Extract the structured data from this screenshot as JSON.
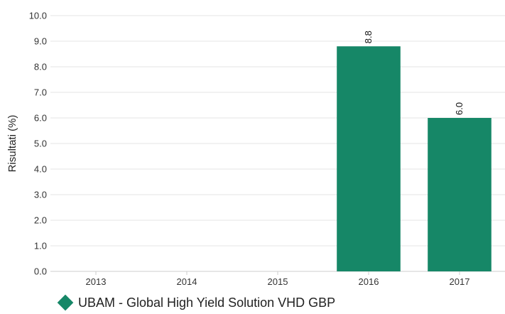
{
  "chart_data": {
    "type": "bar",
    "categories": [
      "2013",
      "2014",
      "2015",
      "2016",
      "2017"
    ],
    "series": [
      {
        "name": "UBAM - Global High Yield Solution VHD GBP",
        "values": [
          null,
          null,
          null,
          8.8,
          6.0
        ],
        "color": "#168767"
      }
    ],
    "data_labels": [
      "",
      "",
      "",
      "8.8",
      "6.0"
    ],
    "ylabel": "Risultati (%)",
    "xlabel": "",
    "ylim": [
      0,
      10
    ],
    "yticks": [
      "0.0",
      "1.0",
      "2.0",
      "3.0",
      "4.0",
      "5.0",
      "6.0",
      "7.0",
      "8.0",
      "9.0",
      "10.0"
    ],
    "grid": true,
    "legend_position": "bottom-left"
  },
  "legend": {
    "label": "UBAM - Global High Yield Solution VHD GBP",
    "icon": "diamond-icon",
    "color": "#168767"
  }
}
